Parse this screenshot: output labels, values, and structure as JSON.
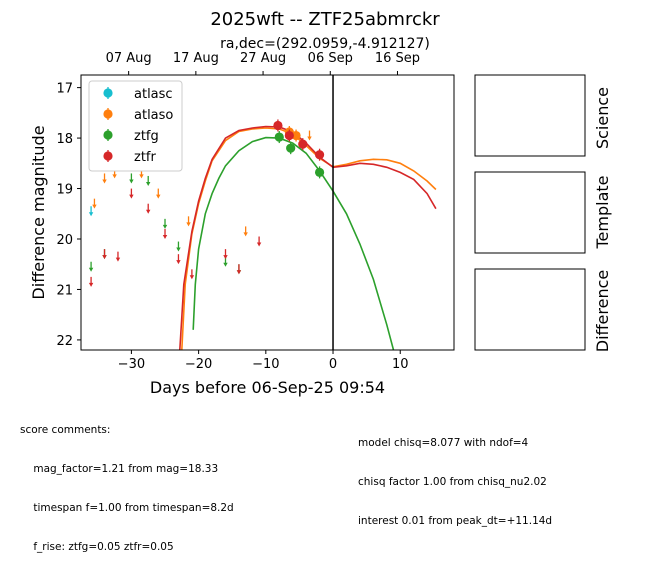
{
  "title": "2025wft -- ZTF25abmrckr",
  "subtitle": "ra,dec=(292.0959,-4.912127)",
  "chart_data": {
    "type": "scatter",
    "xlabel": "Days before 06-Sep-25 09:54",
    "ylabel": "Difference magnitude",
    "xlim": [
      -37.5,
      18
    ],
    "ylim": [
      22.2,
      16.75
    ],
    "xticks": [
      -30,
      -20,
      -10,
      0,
      10
    ],
    "yticks": [
      17,
      18,
      19,
      20,
      21,
      22
    ],
    "top_axis_ticks": [
      {
        "label": "07 Aug",
        "x": -30.41
      },
      {
        "label": "17 Aug",
        "x": -20.41
      },
      {
        "label": "27 Aug",
        "x": -10.41
      },
      {
        "label": "06 Sep",
        "x": -0.41
      },
      {
        "label": "16 Sep",
        "x": 9.59
      }
    ],
    "vline_x": 0,
    "legend_position": "top-left",
    "series": [
      {
        "name": "atlasc",
        "color": "#17becf",
        "upper_limits": [
          [
            -36,
            19.45
          ]
        ],
        "points": []
      },
      {
        "name": "atlaso",
        "color": "#ff7f0e",
        "upper_limits": [
          [
            -35.5,
            19.3
          ],
          [
            -34,
            18.8
          ],
          [
            -32.5,
            18.7
          ],
          [
            -28.5,
            18.7
          ],
          [
            -26,
            19.1
          ],
          [
            -21.5,
            19.65
          ],
          [
            -13,
            19.85
          ],
          [
            -3.5,
            17.95
          ]
        ],
        "points": [
          [
            -6.5,
            17.88
          ],
          [
            -5.5,
            17.95
          ]
        ]
      },
      {
        "name": "ztfg",
        "color": "#2ca02c",
        "upper_limits": [
          [
            -36,
            20.55
          ],
          [
            -34,
            20.3
          ],
          [
            -30,
            18.8
          ],
          [
            -27.5,
            18.85
          ],
          [
            -25,
            19.7
          ],
          [
            -23,
            20.15
          ],
          [
            -16,
            20.45
          ],
          [
            -14,
            20.6
          ]
        ],
        "points": [
          [
            -8,
            17.98
          ],
          [
            -6.3,
            18.2
          ],
          [
            -2,
            18.68
          ]
        ]
      },
      {
        "name": "ztfr",
        "color": "#d62728",
        "upper_limits": [
          [
            -36,
            20.85
          ],
          [
            -34,
            20.3
          ],
          [
            -32,
            20.35
          ],
          [
            -30,
            19.1
          ],
          [
            -27.5,
            19.4
          ],
          [
            -25,
            19.9
          ],
          [
            -23,
            20.4
          ],
          [
            -21,
            20.7
          ],
          [
            -16,
            20.3
          ],
          [
            -14,
            20.6
          ],
          [
            -11,
            20.05
          ]
        ],
        "points": [
          [
            -8.2,
            17.75
          ],
          [
            -6.5,
            17.95
          ],
          [
            -4.5,
            18.12
          ],
          [
            -2,
            18.33
          ]
        ]
      }
    ],
    "model_curves": [
      {
        "name": "ztfg",
        "color": "#2ca02c",
        "points": [
          [
            -20.8,
            21.8
          ],
          [
            -20.5,
            20.9
          ],
          [
            -20,
            20.2
          ],
          [
            -19,
            19.5
          ],
          [
            -18,
            19.1
          ],
          [
            -17,
            18.8
          ],
          [
            -16,
            18.55
          ],
          [
            -14,
            18.25
          ],
          [
            -12,
            18.07
          ],
          [
            -10,
            17.99
          ],
          [
            -8,
            18.0
          ],
          [
            -6,
            18.1
          ],
          [
            -4,
            18.3
          ],
          [
            -2,
            18.65
          ],
          [
            0,
            19.05
          ],
          [
            2,
            19.5
          ],
          [
            4,
            20.1
          ],
          [
            6,
            20.8
          ],
          [
            8,
            21.7
          ],
          [
            9,
            22.2
          ]
        ]
      },
      {
        "name": "atlaso",
        "color": "#ff7f0e",
        "points": [
          [
            -22.5,
            22.2
          ],
          [
            -22,
            20.9
          ],
          [
            -21,
            19.9
          ],
          [
            -20,
            19.3
          ],
          [
            -19,
            18.85
          ],
          [
            -18,
            18.45
          ],
          [
            -16,
            18.05
          ],
          [
            -14,
            17.87
          ],
          [
            -12,
            17.82
          ],
          [
            -10,
            17.8
          ],
          [
            -8,
            17.82
          ],
          [
            -6,
            17.92
          ],
          [
            -4,
            18.15
          ],
          [
            -2,
            18.4
          ],
          [
            0,
            18.57
          ],
          [
            2,
            18.52
          ],
          [
            4,
            18.45
          ],
          [
            6,
            18.42
          ],
          [
            8,
            18.43
          ],
          [
            10,
            18.5
          ],
          [
            12,
            18.65
          ],
          [
            14,
            18.85
          ],
          [
            15.3,
            19.02
          ]
        ]
      },
      {
        "name": "ztfr",
        "color": "#d62728",
        "points": [
          [
            -22.8,
            22.2
          ],
          [
            -22.2,
            20.9
          ],
          [
            -21,
            19.85
          ],
          [
            -20,
            19.25
          ],
          [
            -19,
            18.8
          ],
          [
            -18,
            18.42
          ],
          [
            -16,
            18.0
          ],
          [
            -14,
            17.85
          ],
          [
            -12,
            17.8
          ],
          [
            -10,
            17.77
          ],
          [
            -8,
            17.78
          ],
          [
            -6,
            17.88
          ],
          [
            -4,
            18.1
          ],
          [
            -2,
            18.38
          ],
          [
            0,
            18.58
          ],
          [
            2,
            18.55
          ],
          [
            4,
            18.5
          ],
          [
            6,
            18.52
          ],
          [
            8,
            18.58
          ],
          [
            10,
            18.68
          ],
          [
            12,
            18.82
          ],
          [
            14,
            19.1
          ],
          [
            15.3,
            19.4
          ]
        ]
      }
    ]
  },
  "panels": {
    "science": "Science",
    "template": "Template",
    "difference": "Difference"
  },
  "footer": {
    "left": [
      "score comments:",
      "    mag_factor=1.21 from mag=18.33",
      "    timespan f=1.00 from timespan=8.2d",
      "    f_rise: ztfg=0.05 ztfr=0.05"
    ],
    "right": [
      "model chisq=8.077 with ndof=4",
      "chisq factor 1.00 from chisq_nu2.02",
      "interest 0.01 from peak_dt=+11.14d"
    ]
  }
}
